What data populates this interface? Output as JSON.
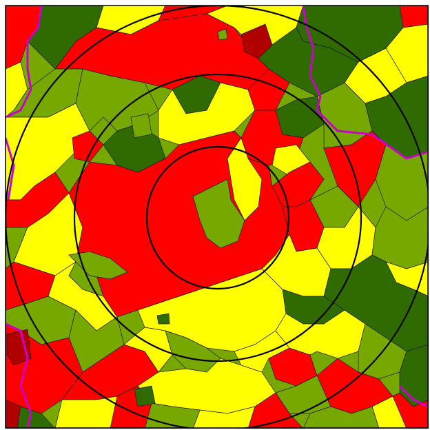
{
  "map": {
    "type": "choropleth-with-radius-rings",
    "ring_count": 3,
    "category_colors": {
      "dark_red": "#b00000",
      "red": "#ff0000",
      "yellow": "#ffff00",
      "light_green": "#77a800",
      "dark_green": "#2f6b00"
    },
    "boundary_colors": {
      "district_border": "#1a1a1a",
      "state_border": "#cc00cc",
      "ring_stroke": "#000000"
    }
  }
}
